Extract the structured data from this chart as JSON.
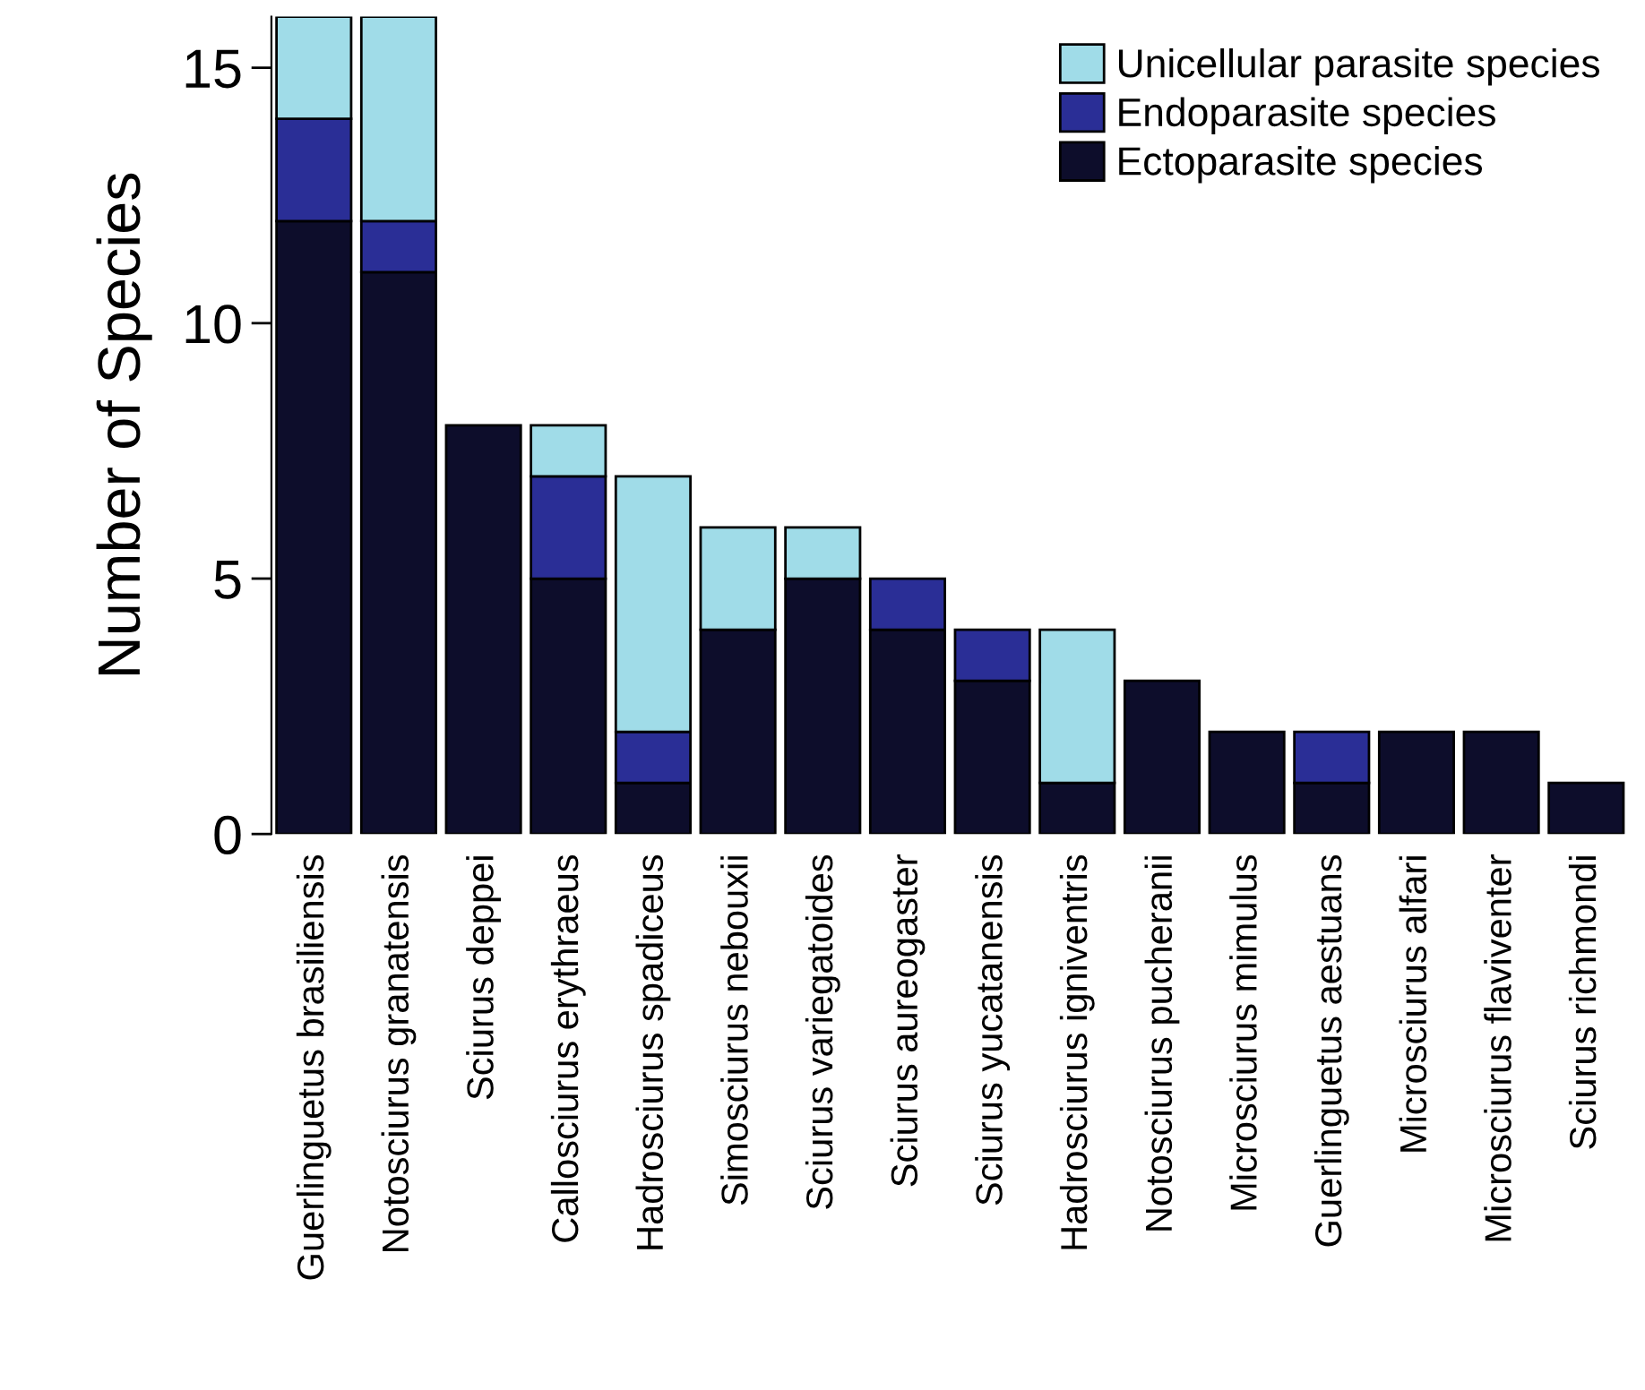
{
  "chart_data": {
    "type": "bar",
    "stacked": true,
    "ylabel": "Number of Species",
    "categories": [
      "Guerlinguetus brasiliensis",
      "Notosciurus granatensis",
      "Sciurus deppei",
      "Callosciurus erythraeus",
      "Hadrosciurus spadiceus",
      "Simosciurus nebouxii",
      "Sciurus variegatoides",
      "Sciurus aureogaster",
      "Sciurus yucatanensis",
      "Hadrosciurus igniventris",
      "Notosciurus pucheranii",
      "Microsciurus mimulus",
      "Guerlinguetus aestuans",
      "Microsciurus alfari",
      "Microsciurus flaviventer",
      "Sciurus richmondi"
    ],
    "series": [
      {
        "name": "Ectoparasite species",
        "color": "#0d0d2b",
        "values": [
          12,
          11,
          8,
          5,
          1,
          4,
          5,
          4,
          3,
          1,
          3,
          2,
          1,
          2,
          2,
          1
        ]
      },
      {
        "name": "Endoparasite species",
        "color": "#2a2e96",
        "values": [
          2,
          1,
          0,
          2,
          1,
          0,
          0,
          1,
          1,
          0,
          0,
          0,
          1,
          0,
          0,
          0
        ]
      },
      {
        "name": "Unicellular parasite species",
        "color": "#a0dce8",
        "values": [
          2,
          4,
          0,
          1,
          5,
          2,
          1,
          0,
          0,
          3,
          0,
          0,
          0,
          0,
          0,
          0
        ]
      }
    ],
    "ylim": [
      0,
      16
    ],
    "yticks": [
      0,
      5,
      10,
      15
    ],
    "grid": false,
    "legend": "top right"
  }
}
